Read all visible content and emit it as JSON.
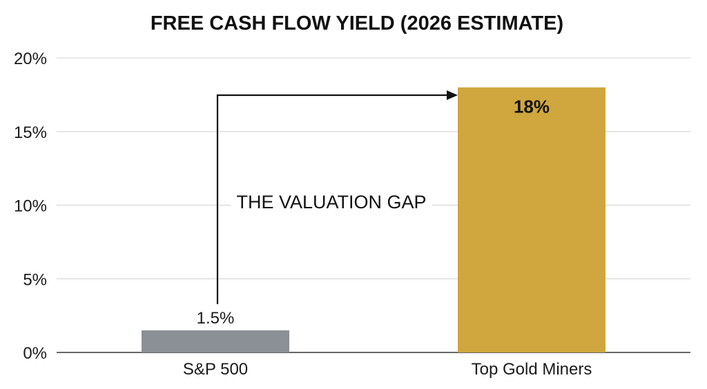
{
  "chart_data": {
    "type": "bar",
    "title": "FREE CASH FLOW YIELD (2026 ESTIMATE)",
    "xlabel": "",
    "ylabel": "",
    "categories": [
      "S&P 500",
      "Top Gold Miners"
    ],
    "values": [
      1.5,
      18
    ],
    "value_labels": [
      "1.5%",
      "18%"
    ],
    "ylim": [
      0,
      20
    ],
    "yticks": [
      0,
      5,
      10,
      15,
      20
    ],
    "ytick_labels": [
      "0%",
      "5%",
      "10%",
      "15%",
      "20%"
    ],
    "grid": true,
    "bar_colors": [
      "#8a9095",
      "#cfa73e"
    ],
    "annotation": {
      "text": "THE VALUATION GAP",
      "from_category": "S&P 500",
      "to_category": "Top Gold Miners"
    }
  },
  "colors": {
    "gridline": "#d9d9d9",
    "axis": "#333333",
    "arrow": "#111111"
  }
}
